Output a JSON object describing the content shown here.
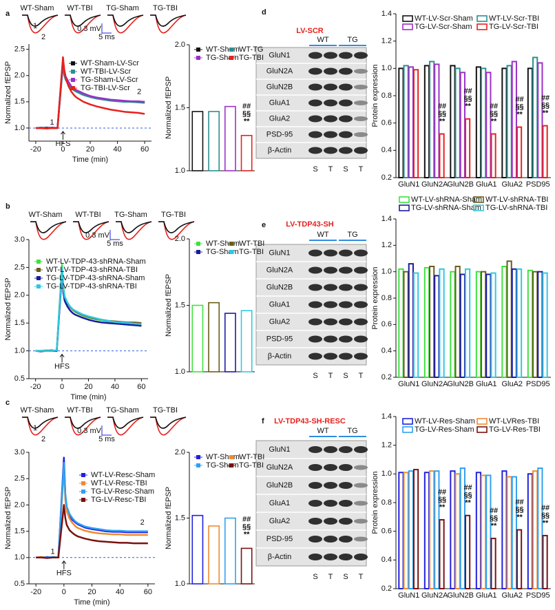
{
  "panels": [
    {
      "label": "a",
      "trace_labels": [
        "WT-Sham",
        "WT-TBI",
        "TG-Sham",
        "TG-TBI"
      ],
      "trace_marks": [
        "1",
        "2"
      ],
      "scale_bar": [
        "0.3 mV",
        "5 ms"
      ]
    },
    {
      "label": "b",
      "trace_labels": [
        "WT-Sham",
        "WT-TBI",
        "TG-Sham",
        "TG-TBI"
      ],
      "scale_bar": [
        "0.3 mV",
        "5 ms"
      ]
    },
    {
      "label": "c",
      "trace_labels": [
        "WT-Sham",
        "WT-TBI",
        "TG-Sham",
        "TG-TBI"
      ],
      "trace_marks": [
        "1",
        "2"
      ],
      "scale_bar": [
        "0.3 mV",
        "5 ms"
      ]
    },
    {
      "label": "d",
      "blot": {
        "title": "LV-SCR",
        "groups": [
          "WT",
          "TG"
        ],
        "rows": [
          "GluN1",
          "GluN2A",
          "GluN2B",
          "GluA1",
          "GluA2",
          "PSD-95",
          "β-Actin"
        ],
        "lanes": [
          "S",
          "T",
          "S",
          "T"
        ]
      }
    },
    {
      "label": "e",
      "blot": {
        "title": "LV-TDP43-SH",
        "groups": [
          "WT",
          "TG"
        ],
        "rows": [
          "GluN1",
          "GluN2A",
          "GluN2B",
          "GluA1",
          "GluA2",
          "PSD-95",
          "β-Actin"
        ],
        "lanes": [
          "S",
          "T",
          "S",
          "T"
        ]
      }
    },
    {
      "label": "f",
      "blot": {
        "title": "LV-TDP43-SH-RESC",
        "groups": [
          "WT",
          "TG"
        ],
        "rows": [
          "GluN1",
          "GluN2A",
          "GluN2B",
          "GluA1",
          "GluA2",
          "PSD-95",
          "β-Actin"
        ],
        "lanes": [
          "S",
          "T",
          "S",
          "T"
        ]
      }
    }
  ],
  "chart_data": [
    {
      "type": "line",
      "y_label": "Normalized fEPSP",
      "x_label": "Time (min)",
      "xlim": [
        -25,
        65
      ],
      "xticks": [
        -20,
        0,
        20,
        40,
        60
      ],
      "ylim": [
        0.75,
        2.6
      ],
      "yticks": [
        {
          "value": 1.0,
          "label": "1.0"
        },
        {
          "value": 1.5,
          "label": "1.5"
        },
        {
          "value": 2.0,
          "label": "2.0"
        },
        {
          "value": 2.5,
          "label": "2.5"
        }
      ],
      "baseline": 1.0,
      "annotations": [
        "HFS",
        "1",
        "2"
      ],
      "x": [
        -20,
        -16,
        -12,
        -8,
        -4,
        0,
        1,
        2,
        4,
        6,
        8,
        10,
        15,
        20,
        25,
        30,
        35,
        40,
        45,
        50,
        55,
        60
      ],
      "series": [
        {
          "name": "WT-Sham-LV-Scr",
          "color": "#111111",
          "values": [
            1,
            1,
            1.01,
            1,
            1,
            2.25,
            2.05,
            1.95,
            1.85,
            1.78,
            1.73,
            1.7,
            1.64,
            1.6,
            1.57,
            1.55,
            1.53,
            1.52,
            1.51,
            1.5,
            1.5,
            1.5
          ]
        },
        {
          "name": "WT-TBI-LV-Scr",
          "color": "#2a8f8f",
          "values": [
            1,
            1.01,
            1,
            1,
            1,
            2.2,
            2.0,
            1.92,
            1.83,
            1.77,
            1.72,
            1.69,
            1.63,
            1.59,
            1.56,
            1.54,
            1.52,
            1.51,
            1.5,
            1.5,
            1.49,
            1.48
          ]
        },
        {
          "name": "TG-Sham-LV-Scr",
          "color": "#9b30c8",
          "values": [
            1,
            1,
            1,
            1.01,
            1,
            2.3,
            2.1,
            1.98,
            1.88,
            1.8,
            1.75,
            1.72,
            1.66,
            1.61,
            1.58,
            1.56,
            1.54,
            1.53,
            1.52,
            1.51,
            1.51,
            1.5
          ]
        },
        {
          "name": "TG-TBI-LV-Scr",
          "color": "#e8201c",
          "values": [
            1,
            1,
            0.99,
            1,
            1,
            2.35,
            2.1,
            1.95,
            1.8,
            1.7,
            1.63,
            1.58,
            1.5,
            1.45,
            1.41,
            1.38,
            1.35,
            1.33,
            1.31,
            1.3,
            1.29,
            1.27
          ]
        }
      ]
    },
    {
      "type": "bar",
      "y_label": "Normalized fEPSP",
      "ylim": [
        1.0,
        2.0
      ],
      "yticks": [
        {
          "value": 1.0,
          "label": "1.0"
        },
        {
          "value": 1.5,
          "label": "1.5"
        },
        {
          "value": 2.0,
          "label": "2.0"
        }
      ],
      "annotations": [
        "##",
        "§§",
        "**"
      ],
      "series": [
        {
          "name": "WT-Sham",
          "color": "#111111",
          "values": [
            1.47
          ]
        },
        {
          "name": "WT-TG",
          "color": "#2a8f8f",
          "values": [
            1.47
          ]
        },
        {
          "name": "TG-Sham",
          "color": "#9b30c8",
          "values": [
            1.51
          ]
        },
        {
          "name": "TG-TBI",
          "color": "#e8201c",
          "values": [
            1.28
          ]
        }
      ]
    },
    {
      "type": "grouped_bar",
      "y_label": "Protein expression",
      "categories": [
        "GluN1",
        "GluN2A",
        "GluN2B",
        "GluA1",
        "GluA2",
        "PSD95"
      ],
      "ylim": [
        0.2,
        1.4
      ],
      "yticks": [
        0.2,
        0.4,
        0.6,
        0.8,
        {
          "value": 1.0,
          "label": "1.0"
        },
        1.2,
        1.4
      ],
      "annotations": [
        "##",
        "§§",
        "**"
      ],
      "series": [
        {
          "name": "WT-LV-Scr-Sham",
          "color": "#111111",
          "values": [
            1.0,
            1.02,
            1.02,
            1.01,
            1.0,
            1.0
          ]
        },
        {
          "name": "WT-LV-Scr-TBI",
          "color": "#2a8f8f",
          "values": [
            1.02,
            1.05,
            1.0,
            1.0,
            1.02,
            1.08
          ]
        },
        {
          "name": "TG-LV-Scr-Sham",
          "color": "#9b30c8",
          "values": [
            1.01,
            1.03,
            0.97,
            0.97,
            1.05,
            1.04
          ]
        },
        {
          "name": "TG-LV-Scr-TBI",
          "color": "#e8201c",
          "values": [
            0.99,
            0.52,
            0.63,
            0.52,
            0.57,
            0.58
          ]
        }
      ]
    },
    {
      "type": "line",
      "y_label": "Normalized fEPSP",
      "x_label": "Time (min)",
      "xlim": [
        -25,
        65
      ],
      "xticks": [
        -20,
        0,
        20,
        40,
        60
      ],
      "ylim": [
        0.5,
        3.0
      ],
      "yticks": [
        {
          "value": 0.5,
          "label": "0.5"
        },
        {
          "value": 1.0,
          "label": "1.0"
        },
        {
          "value": 1.5,
          "label": "1.5"
        },
        {
          "value": 2.0,
          "label": "2.0"
        },
        {
          "value": 2.5,
          "label": "2.5"
        },
        {
          "value": 3.0,
          "label": "3.0"
        }
      ],
      "baseline": 1.0,
      "annotations": [
        "HFS"
      ],
      "x": [
        -20,
        -16,
        -12,
        -8,
        -4,
        0,
        1,
        2,
        4,
        6,
        8,
        10,
        15,
        20,
        25,
        30,
        35,
        40,
        45,
        50,
        55,
        60
      ],
      "series": [
        {
          "name": "WT-LV-TDP-43-shRNA-Sham",
          "color": "#40e040",
          "values": [
            1,
            1,
            1.01,
            1,
            1,
            2.55,
            2.15,
            1.98,
            1.87,
            1.79,
            1.74,
            1.7,
            1.64,
            1.6,
            1.57,
            1.55,
            1.53,
            1.52,
            1.51,
            1.5,
            1.5,
            1.49
          ]
        },
        {
          "name": "WT-LV-TDP-43-shRNA-TBI",
          "color": "#6b5c1a",
          "values": [
            1,
            1,
            1,
            1.01,
            1,
            2.45,
            2.1,
            1.96,
            1.86,
            1.79,
            1.74,
            1.71,
            1.65,
            1.61,
            1.58,
            1.56,
            1.54,
            1.53,
            1.52,
            1.51,
            1.51,
            1.5
          ]
        },
        {
          "name": "TG-LV-TDP-43-shRNA-Sham",
          "color": "#1a1aa0",
          "values": [
            1,
            0.99,
            1,
            1,
            1,
            2.4,
            2.05,
            1.9,
            1.8,
            1.73,
            1.68,
            1.65,
            1.6,
            1.56,
            1.53,
            1.51,
            1.5,
            1.49,
            1.48,
            1.47,
            1.46,
            1.45
          ]
        },
        {
          "name": "TG-LV-TDP-43-shRNA-TBI",
          "color": "#30c8e0",
          "values": [
            1,
            1,
            1,
            1,
            1.01,
            2.5,
            2.12,
            1.97,
            1.87,
            1.8,
            1.75,
            1.72,
            1.66,
            1.62,
            1.59,
            1.56,
            1.54,
            1.52,
            1.51,
            1.5,
            1.49,
            1.48
          ]
        }
      ]
    },
    {
      "type": "bar",
      "y_label": "Normalized fEPSP",
      "ylim": [
        1.0,
        2.0
      ],
      "yticks": [
        {
          "value": 1.0,
          "label": "1.0"
        },
        {
          "value": 1.5,
          "label": "1.5"
        },
        {
          "value": 2.0,
          "label": "2.0"
        }
      ],
      "series": [
        {
          "name": "WT-Sham",
          "color": "#40e040",
          "values": [
            1.5
          ]
        },
        {
          "name": "WT-TBI",
          "color": "#6b5c1a",
          "values": [
            1.52
          ]
        },
        {
          "name": "TG-Sham",
          "color": "#1a1aa0",
          "values": [
            1.44
          ]
        },
        {
          "name": "TG-TBI",
          "color": "#30c8e0",
          "values": [
            1.46
          ]
        }
      ]
    },
    {
      "type": "grouped_bar",
      "y_label": "Protein expression",
      "categories": [
        "GluN1",
        "GluN2A",
        "GluN2B",
        "GluA1",
        "GluA2",
        "PSD95"
      ],
      "ylim": [
        0.2,
        1.4
      ],
      "yticks": [
        0.2,
        0.4,
        0.6,
        0.8,
        {
          "value": 1.0,
          "label": "1.0"
        },
        1.2,
        1.4
      ],
      "series": [
        {
          "name": "WT-LV-shRNA-Sham",
          "color": "#40e040",
          "values": [
            1.02,
            1.03,
            1.0,
            1.0,
            1.04,
            1.01
          ]
        },
        {
          "name": "WT-LV-shRNA-TBI",
          "color": "#6b5c1a",
          "values": [
            1.0,
            1.04,
            1.04,
            1.0,
            1.08,
            1.0
          ]
        },
        {
          "name": "TG-LV-shRNA-Sham",
          "color": "#1a1aa0",
          "values": [
            1.06,
            0.97,
            0.98,
            0.98,
            1.02,
            1.0
          ]
        },
        {
          "name": "TG-LV-shRNA-TBI",
          "color": "#30c8e0",
          "values": [
            0.99,
            1.02,
            1.02,
            0.99,
            1.02,
            0.99
          ]
        }
      ]
    },
    {
      "type": "line",
      "y_label": "Normalized fEPSP",
      "x_label": "Time (min)",
      "xlim": [
        -25,
        65
      ],
      "xticks": [
        -20,
        0,
        20,
        40,
        60
      ],
      "ylim": [
        0.5,
        3.0
      ],
      "yticks": [
        {
          "value": 0.5,
          "label": "0.5"
        },
        {
          "value": 1.0,
          "label": "1.0"
        },
        {
          "value": 1.5,
          "label": "1.5"
        },
        {
          "value": 2.0,
          "label": "2.0"
        },
        {
          "value": 2.5,
          "label": "2.5"
        },
        {
          "value": 3.0,
          "label": "3.0"
        }
      ],
      "baseline": 1.0,
      "annotations": [
        "HFS",
        "1",
        "2"
      ],
      "x": [
        -20,
        -16,
        -12,
        -8,
        -4,
        0,
        1,
        2,
        4,
        6,
        8,
        10,
        15,
        20,
        25,
        30,
        35,
        40,
        45,
        50,
        55,
        60
      ],
      "series": [
        {
          "name": "WT-LV-Resc-Sham",
          "color": "#2020e0",
          "values": [
            1,
            1,
            1.01,
            1,
            1,
            2.9,
            2.2,
            1.95,
            1.8,
            1.72,
            1.67,
            1.63,
            1.57,
            1.54,
            1.52,
            1.5,
            1.49,
            1.49,
            1.48,
            1.48,
            1.48,
            1.48
          ]
        },
        {
          "name": "WT-LV-Resc-TBI",
          "color": "#f08a30",
          "values": [
            1,
            1.01,
            1,
            1,
            1,
            2.7,
            2.1,
            1.88,
            1.74,
            1.66,
            1.6,
            1.56,
            1.51,
            1.48,
            1.46,
            1.45,
            1.44,
            1.44,
            1.43,
            1.43,
            1.43,
            1.43
          ]
        },
        {
          "name": "TG-LV-Resc-Sham",
          "color": "#30a0f0",
          "values": [
            1,
            1,
            1,
            1.01,
            1,
            2.8,
            2.2,
            1.97,
            1.83,
            1.75,
            1.69,
            1.65,
            1.59,
            1.56,
            1.54,
            1.52,
            1.51,
            1.51,
            1.5,
            1.5,
            1.5,
            1.5
          ]
        },
        {
          "name": "TG-LV-Resc-TBI",
          "color": "#7a1010",
          "values": [
            1,
            1,
            0.99,
            1,
            1,
            2.0,
            1.75,
            1.62,
            1.52,
            1.47,
            1.43,
            1.4,
            1.36,
            1.33,
            1.31,
            1.3,
            1.29,
            1.28,
            1.28,
            1.27,
            1.27,
            1.27
          ]
        }
      ]
    },
    {
      "type": "bar",
      "y_label": "Normalized fEPSP",
      "ylim": [
        1.0,
        2.0
      ],
      "yticks": [
        {
          "value": 1.0,
          "label": "1.0"
        },
        {
          "value": 1.5,
          "label": "1.5"
        },
        {
          "value": 2.0,
          "label": "2.0"
        }
      ],
      "annotations": [
        "##",
        "§§",
        "**"
      ],
      "series": [
        {
          "name": "WT-Sham",
          "color": "#2020e0",
          "values": [
            1.52
          ]
        },
        {
          "name": "WT-TBI",
          "color": "#f08a30",
          "values": [
            1.44
          ]
        },
        {
          "name": "TG-Sham",
          "color": "#30a0f0",
          "values": [
            1.5
          ]
        },
        {
          "name": "TG-TBI",
          "color": "#7a1010",
          "values": [
            1.27
          ]
        }
      ]
    },
    {
      "type": "grouped_bar",
      "y_label": "Protein expression",
      "categories": [
        "GluN1",
        "GluN2A",
        "GluN2B",
        "GluA1",
        "GluA2",
        "PSD95"
      ],
      "ylim": [
        0.2,
        1.4
      ],
      "yticks": [
        0.2,
        0.4,
        0.6,
        0.8,
        {
          "value": 1.0,
          "label": "1.0"
        },
        1.2,
        1.4
      ],
      "annotations": [
        "##",
        "§§",
        "**"
      ],
      "series": [
        {
          "name": "WT-LV-Res-Sham",
          "color": "#2020e0",
          "values": [
            1.01,
            1.01,
            1.02,
            1.01,
            1.02,
            1.0
          ]
        },
        {
          "name": "WT-LVRes-TBI",
          "color": "#f08a30",
          "values": [
            1.01,
            1.02,
            1.0,
            0.99,
            0.98,
            1.02
          ]
        },
        {
          "name": "TG-LV-Res-Sham",
          "color": "#30a0f0",
          "values": [
            1.02,
            1.02,
            1.04,
            0.99,
            0.98,
            1.04
          ]
        },
        {
          "name": "TG-LV-Res-TBI",
          "color": "#7a1010",
          "values": [
            1.03,
            0.68,
            0.71,
            0.55,
            0.61,
            0.57
          ]
        }
      ]
    }
  ]
}
